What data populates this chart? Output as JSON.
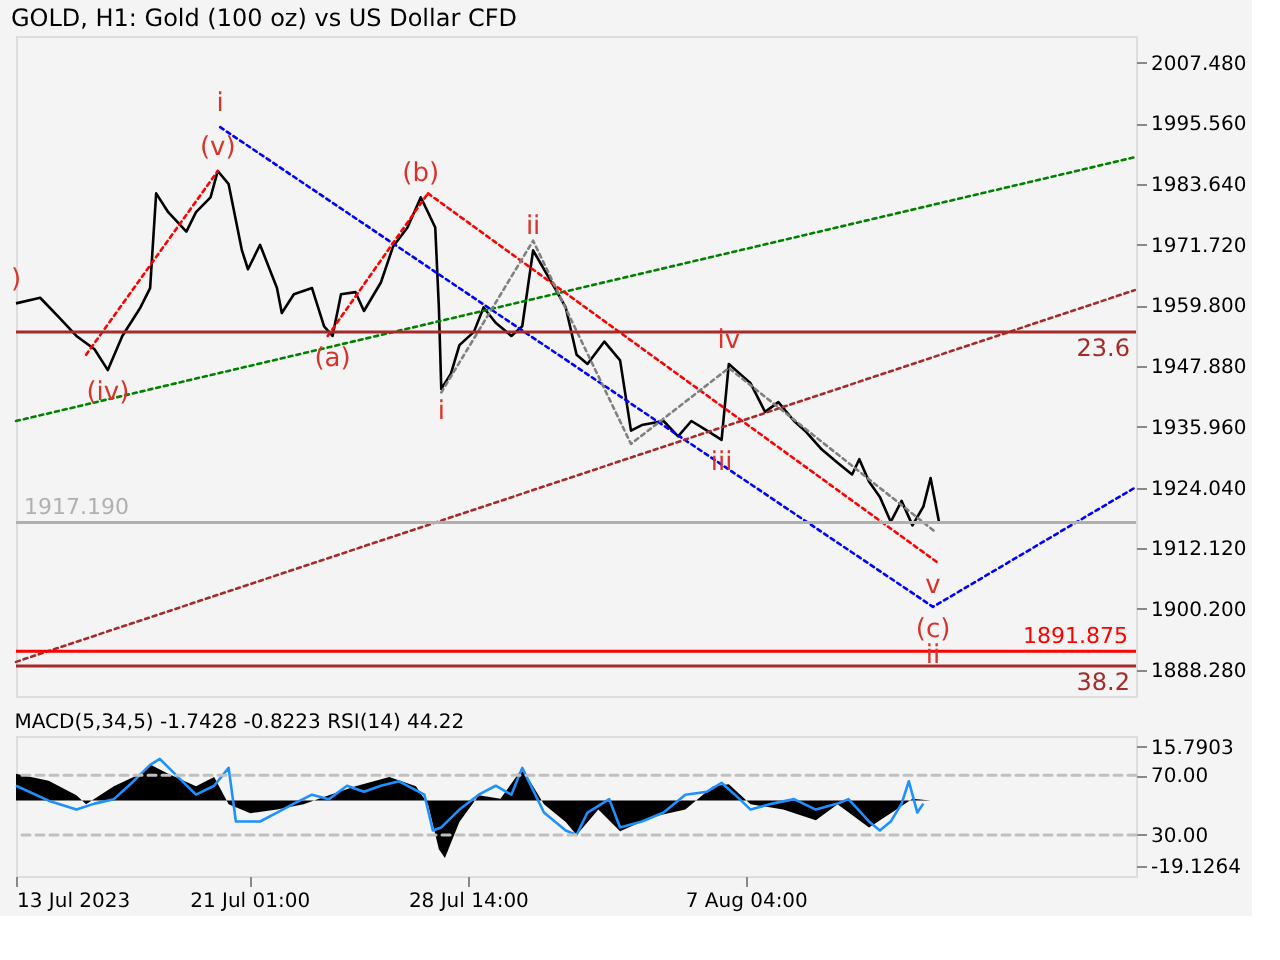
{
  "chart_data": [
    {
      "type": "line",
      "title": "GOLD, H1:  Gold (100 oz) vs US Dollar CFD",
      "xlim": [
        "2023-07-13T00:00",
        "2023-08-20T15:00"
      ],
      "xticks": [
        {
          "value": "2023-07-13T00:00",
          "label": null
        },
        {
          "value": "2023-07-21T01:00",
          "label": null
        },
        {
          "value": "2023-07-28T14:00",
          "label": null
        },
        {
          "value": "2023-08-07T04:00",
          "label": null
        }
      ],
      "ylim": [
        1883.1,
        2012.7
      ],
      "yticks": [
        {
          "value": 2007.48,
          "label": "2007.480"
        },
        {
          "value": 1995.56,
          "label": "1995.560"
        },
        {
          "value": 1983.64,
          "label": "1983.640"
        },
        {
          "value": 1971.72,
          "label": "1971.720"
        },
        {
          "value": 1959.8,
          "label": "1959.800"
        },
        {
          "value": 1947.88,
          "label": "1947.880"
        },
        {
          "value": 1935.96,
          "label": "1935.960"
        },
        {
          "value": 1924.04,
          "label": "1924.040"
        },
        {
          "value": 1912.12,
          "label": "1912.120"
        },
        {
          "value": 1900.2,
          "label": "1900.200"
        },
        {
          "value": 1888.28,
          "label": "1888.280"
        }
      ],
      "tick_labels": "y",
      "series": [
        {
          "color": "#000000",
          "line_style": "solid",
          "x": [
            "2023-07-13T00:00",
            "2023-07-13T20:00",
            "2023-07-14T11:00",
            "2023-07-15T02:00",
            "2023-07-15T17:00",
            "2023-07-16T04:00",
            "2023-07-16T16:00",
            "2023-07-17T07:00",
            "2023-07-17T15:00",
            "2023-07-17T20:00",
            "2023-07-18T06:00",
            "2023-07-18T21:00",
            "2023-07-19T05:00",
            "2023-07-19T17:00",
            "2023-07-19T23:00",
            "2023-07-20T08:00",
            "2023-07-20T19:00",
            "2023-07-21T00:00",
            "2023-07-21T10:00",
            "2023-07-22T00:00",
            "2023-07-22T04:00",
            "2023-07-22T14:00",
            "2023-07-23T05:00",
            "2023-07-23T15:00",
            "2023-07-23T22:00",
            "2023-07-24T05:00",
            "2023-07-24T17:00",
            "2023-07-25T00:00",
            "2023-07-25T14:00",
            "2023-07-26T00:00",
            "2023-07-26T12:00",
            "2023-07-26T23:00",
            "2023-07-27T05:00",
            "2023-07-27T11:00",
            "2023-07-27T14:00",
            "2023-07-27T16:00",
            "2023-07-28T00:00",
            "2023-07-28T07:00",
            "2023-07-28T19:00",
            "2023-07-29T03:00",
            "2023-07-29T13:00",
            "2023-07-30T02:00",
            "2023-07-30T11:00",
            "2023-07-30T20:00",
            "2023-07-31T05:00",
            "2023-07-31T14:00",
            "2023-07-31T23:00",
            "2023-08-01T08:00",
            "2023-08-01T17:00",
            "2023-08-02T07:00",
            "2023-08-02T20:00",
            "2023-08-03T05:00",
            "2023-08-03T14:00",
            "2023-08-04T08:00",
            "2023-08-04T20:00",
            "2023-08-05T07:00",
            "2023-08-05T20:00",
            "2023-08-06T08:00",
            "2023-08-06T14:00",
            "2023-08-06T23:00",
            "2023-08-07T08:00",
            "2023-08-07T20:00",
            "2023-08-08T07:00",
            "2023-08-08T20:00",
            "2023-08-09T05:00",
            "2023-08-09T19:00",
            "2023-08-10T08:00",
            "2023-08-10T20:00",
            "2023-08-11T02:00",
            "2023-08-11T10:00",
            "2023-08-11T19:00",
            "2023-08-12T04:00",
            "2023-08-12T13:00",
            "2023-08-12T22:00",
            "2023-08-13T07:00",
            "2023-08-13T13:00",
            "2023-08-13T16:00",
            "2023-08-13T20:00"
          ],
          "values": [
            1960.2,
            1961.3,
            1957.6,
            1953.8,
            1951.2,
            1947.1,
            1953.8,
            1959.4,
            1963.2,
            1981.8,
            1978.1,
            1974.3,
            1978.1,
            1981.0,
            1986.2,
            1983.6,
            1970.6,
            1966.9,
            1971.7,
            1963.2,
            1958.3,
            1962.0,
            1963.2,
            1955.7,
            1953.8,
            1962.0,
            1962.4,
            1958.7,
            1964.3,
            1971.3,
            1975.1,
            1981.0,
            1978.1,
            1975.1,
            1959.4,
            1943.4,
            1946.4,
            1952.0,
            1954.6,
            1959.4,
            1956.4,
            1953.8,
            1955.7,
            1970.6,
            1966.9,
            1963.2,
            1959.4,
            1950.1,
            1948.3,
            1952.7,
            1949.0,
            1935.2,
            1936.3,
            1937.1,
            1934.1,
            1937.1,
            1935.2,
            1933.4,
            1948.3,
            1946.4,
            1944.5,
            1938.9,
            1940.8,
            1937.1,
            1935.2,
            1931.5,
            1928.9,
            1926.6,
            1929.6,
            1925.2,
            1922.2,
            1917.3,
            1921.4,
            1916.6,
            1920.3,
            1925.9,
            1922.2,
            1917.2
          ]
        },
        {
          "color": "#0000ff",
          "line_style": "dotted",
          "x": [
            "2023-07-20T01:00",
            "2023-08-13T15:00",
            "2023-08-20T14:00"
          ],
          "values": [
            1994.8,
            1900.6,
            1924.0
          ]
        },
        {
          "color": "#008000",
          "line_style": "dotted",
          "x": [
            "2023-07-13T00:00",
            "2023-08-20T14:00"
          ],
          "values": [
            1937.1,
            1988.9
          ]
        },
        {
          "color": "#ff0000",
          "line_style": "dotted",
          "x": [
            "2023-07-27T05:00",
            "2023-08-13T20:00"
          ],
          "values": [
            1981.8,
            1909.1
          ]
        },
        {
          "color": "#ff0000",
          "line_style": "dotted",
          "x": [
            "2023-07-15T10:00",
            "2023-07-19T23:00"
          ],
          "values": [
            1950.1,
            1986.2
          ]
        },
        {
          "color": "#ff0000",
          "line_style": "dotted",
          "x": [
            "2023-07-23T18:00",
            "2023-07-27T05:00"
          ],
          "values": [
            1953.8,
            1981.8
          ]
        },
        {
          "color": "#a52a2a",
          "line_style": "dotted",
          "x": [
            "2023-07-13T00:00",
            "2023-08-20T14:00"
          ],
          "values": [
            1889.8,
            1962.8
          ]
        },
        {
          "color": "#808080",
          "line_style": "dotted",
          "x": [
            "2023-07-27T16:00",
            "2023-07-30T20:00",
            "2023-08-03T05:00",
            "2023-08-06T14:00",
            "2023-08-13T16:00"
          ],
          "values": [
            1942.7,
            1972.5,
            1932.6,
            1947.5,
            1915.5
          ]
        }
      ],
      "ref_lines": [
        {
          "axis": "y",
          "value": 1891.875,
          "label": "1891.875",
          "color": "#ff0000",
          "line_style": "solid"
        },
        {
          "axis": "y",
          "value": 1917.19,
          "label": "1917.190",
          "color": "#b0b0b0",
          "line_style": "solid"
        },
        {
          "axis": "y",
          "value": 1954.6,
          "color": "#a52a2a",
          "line_style": "solid"
        },
        {
          "axis": "y",
          "value": 1889.0,
          "color": "#a52a2a",
          "line_style": "solid"
        }
      ],
      "annotations": [
        {
          "text": ")",
          "x": "2023-07-13T00:00",
          "y": 1960.2
        },
        {
          "text": "i",
          "x": "2023-07-20T01:00",
          "y": 1994.8
        },
        {
          "text": "(v)",
          "x": "2023-07-19T23:00",
          "y": 1986.2
        },
        {
          "text": "(iv)",
          "x": "2023-07-16T04:00",
          "y": 1947.1
        },
        {
          "text": "(a)",
          "x": "2023-07-23T22:00",
          "y": 1953.8
        },
        {
          "text": "(b)",
          "x": "2023-07-26T23:00",
          "y": 1981.0
        },
        {
          "text": "ii",
          "x": "2023-07-30T20:00",
          "y": 1970.6
        },
        {
          "text": "i",
          "x": "2023-07-27T16:00",
          "y": 1943.4
        },
        {
          "text": "iii",
          "x": "2023-08-06T08:00",
          "y": 1933.4
        },
        {
          "text": "iv",
          "x": "2023-08-06T14:00",
          "y": 1948.3
        },
        {
          "text": "v",
          "x": "2023-08-13T15:00",
          "y": 1900.6
        },
        {
          "text": "(c)",
          "x": "2023-08-13T15:00",
          "y": 1900.6
        },
        {
          "text": "ii",
          "x": "2023-08-13T15:00",
          "y": 1900.6
        },
        {
          "text": "23.6",
          "x": "2023-08-20T15:00",
          "y": 1954.6
        },
        {
          "text": "38.2",
          "x": "2023-08-20T15:00",
          "y": 1889.0
        }
      ]
    },
    {
      "type": "line",
      "title": "MACD(5,34,5) -1.7428 -0.8223 RSI(14) 44.22",
      "xlim": [
        "2023-07-13T00:00",
        "2023-08-20T15:00"
      ],
      "xticks": [
        {
          "value": "2023-07-13T00:00",
          "label": "13 Jul 2023"
        },
        {
          "value": "2023-07-21T01:00",
          "label": "21 Jul 01:00"
        },
        {
          "value": "2023-07-28T14:00",
          "label": "28 Jul 14:00"
        },
        {
          "value": "2023-08-07T04:00",
          "label": "7 Aug 04:00"
        }
      ],
      "ylim": [
        -22.2,
        19.0
      ],
      "yticks": [
        {
          "value": 15.7903,
          "label": "15.7903"
        },
        {
          "value": -19.1264,
          "label": "-19.1264"
        }
      ],
      "y2lim": [
        2.4,
        96.4
      ],
      "y2ticks": [
        {
          "value": 70,
          "label": "70.00"
        },
        {
          "value": 30,
          "label": "30.00"
        }
      ],
      "series": [
        {
          "type": "area",
          "color": "#000000",
          "x": [
            "2023-07-13T00:00",
            "2023-07-14T03:00",
            "2023-07-15T02:00",
            "2023-07-15T10:00",
            "2023-07-16T09:00",
            "2023-07-17T07:00",
            "2023-07-17T15:00",
            "2023-07-18T06:00",
            "2023-07-19T05:00",
            "2023-07-19T20:00",
            "2023-07-20T08:00",
            "2023-07-21T02:00",
            "2023-07-22T00:00",
            "2023-07-22T22:00",
            "2023-07-23T19:00",
            "2023-07-24T17:00",
            "2023-07-25T21:00",
            "2023-07-26T19:00",
            "2023-07-27T05:00",
            "2023-07-27T14:00",
            "2023-07-27T19:00",
            "2023-07-28T07:00",
            "2023-07-28T23:00",
            "2023-07-29T17:00",
            "2023-07-30T11:00",
            "2023-07-31T05:00",
            "2023-07-31T23:00",
            "2023-08-01T08:00",
            "2023-08-02T02:00",
            "2023-08-02T20:00",
            "2023-08-03T23:00",
            "2023-08-05T02:00",
            "2023-08-06T01:00",
            "2023-08-06T14:00",
            "2023-08-07T08:00",
            "2023-08-08T11:00",
            "2023-08-09T14:00",
            "2023-08-10T08:00",
            "2023-08-11T10:00",
            "2023-08-12T04:00",
            "2023-08-12T22:00",
            "2023-08-13T13:00"
          ],
          "values": [
            7.9,
            5.8,
            1.6,
            -1.1,
            4.2,
            7.9,
            10.6,
            7.9,
            4.2,
            6.9,
            -1.1,
            -3.7,
            -2.6,
            -1.1,
            1.6,
            4.2,
            6.9,
            4.2,
            -1.1,
            -14.3,
            -16.9,
            -6.3,
            1.6,
            0.5,
            9.5,
            -1.1,
            -6.3,
            -10.1,
            -2.6,
            -9.0,
            -4.8,
            -2.6,
            4.2,
            4.8,
            -1.1,
            -2.6,
            -5.8,
            -1.1,
            -7.9,
            -3.7,
            0.5,
            0.0
          ]
        },
        {
          "color": "#1e90ff",
          "axis": "y2",
          "x": [
            "2023-07-13T00:00",
            "2023-07-14T03:00",
            "2023-07-15T02:00",
            "2023-07-15T17:00",
            "2023-07-16T09:00",
            "2023-07-17T00:00",
            "2023-07-17T15:00",
            "2023-07-17T23:00",
            "2023-07-18T14:00",
            "2023-07-19T05:00",
            "2023-07-19T20:00",
            "2023-07-20T08:00",
            "2023-07-20T14:00",
            "2023-07-21T10:00",
            "2023-07-22T00:00",
            "2023-07-22T14:00",
            "2023-07-23T05:00",
            "2023-07-23T19:00",
            "2023-07-24T10:00",
            "2023-07-25T00:00",
            "2023-07-25T14:00",
            "2023-07-26T05:00",
            "2023-07-27T02:00",
            "2023-07-27T09:00",
            "2023-07-27T16:00",
            "2023-07-28T07:00",
            "2023-07-28T23:00",
            "2023-07-29T13:00",
            "2023-07-30T02:00",
            "2023-07-30T11:00",
            "2023-07-31T05:00",
            "2023-07-31T23:00",
            "2023-08-01T08:00",
            "2023-08-01T17:00",
            "2023-08-02T11:00",
            "2023-08-02T20:00",
            "2023-08-03T14:00",
            "2023-08-04T08:00",
            "2023-08-05T02:00",
            "2023-08-05T20:00",
            "2023-08-06T08:00",
            "2023-08-06T19:00",
            "2023-08-07T08:00",
            "2023-08-08T02:00",
            "2023-08-08T20:00",
            "2023-08-09T14:00",
            "2023-08-10T08:00",
            "2023-08-10T17:00",
            "2023-08-11T10:00",
            "2023-08-11T19:00",
            "2023-08-12T04:00",
            "2023-08-12T13:00",
            "2023-08-12T19:00",
            "2023-08-13T02:00",
            "2023-08-13T07:00"
          ],
          "values": [
            63,
            53,
            47,
            51,
            54,
            65,
            77,
            81,
            69,
            57,
            63,
            75,
            39,
            39,
            45,
            51,
            57,
            54,
            63,
            59,
            63,
            66,
            57,
            33,
            35,
            47,
            57,
            63,
            57,
            75,
            45,
            33,
            30,
            45,
            54,
            35,
            39,
            45,
            57,
            59,
            65,
            57,
            47,
            51,
            54,
            47,
            51,
            54,
            39,
            33,
            39,
            51,
            66,
            45,
            51
          ]
        }
      ],
      "ref_lines": [
        {
          "axis": "y2",
          "value": 70,
          "color": "#c0c0c0",
          "line_style": "dashed"
        },
        {
          "axis": "y2",
          "value": 30,
          "color": "#c0c0c0",
          "line_style": "dashed"
        }
      ]
    }
  ]
}
